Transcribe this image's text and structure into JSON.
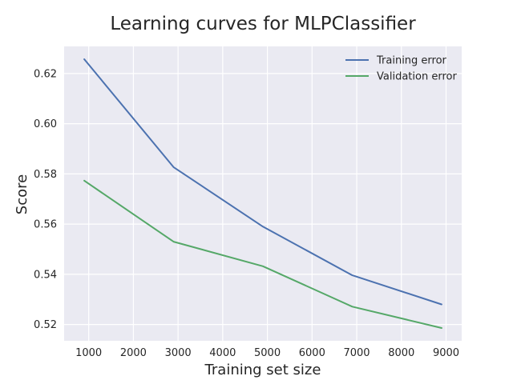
{
  "chart_data": {
    "type": "line",
    "title": "Learning curves for MLPClassifier",
    "xlabel": "Training set size",
    "ylabel": "Score",
    "x": [
      900,
      2900,
      4900,
      6900,
      8900
    ],
    "xlim": [
      450,
      9350
    ],
    "ylim": [
      0.5135,
      0.6308
    ],
    "xticks": [
      1000,
      2000,
      3000,
      4000,
      5000,
      6000,
      7000,
      8000,
      9000
    ],
    "xtick_labels": [
      "1000",
      "2000",
      "3000",
      "4000",
      "5000",
      "6000",
      "7000",
      "8000",
      "9000"
    ],
    "yticks": [
      0.52,
      0.54,
      0.56,
      0.58,
      0.6,
      0.62
    ],
    "ytick_labels": [
      "0.52",
      "0.54",
      "0.56",
      "0.58",
      "0.60",
      "0.62"
    ],
    "grid": true,
    "legend_position": "top-right",
    "series": [
      {
        "name": "Training error",
        "color": "#4c72b0",
        "values": [
          0.6257,
          0.5827,
          0.559,
          0.5396,
          0.528
        ]
      },
      {
        "name": "Validation error",
        "color": "#55a868",
        "values": [
          0.5773,
          0.553,
          0.5432,
          0.5271,
          0.5186
        ]
      }
    ],
    "background_color": "#eaeaf2",
    "grid_color": "#ffffff"
  }
}
